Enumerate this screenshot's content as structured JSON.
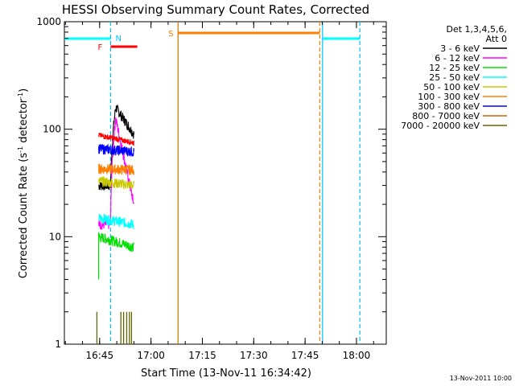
{
  "chart_data": {
    "type": "line",
    "title": "HESSI Observing Summary Count Rates, Corrected",
    "xlabel": "Start Time (13-Nov-11 16:34:42)",
    "ylabel": "Corrected Count Rate (s",
    "ylabel_sup1": "-1",
    "ylabel_mid": " detector",
    "ylabel_sup2": "-1",
    "ylabel_end": ")",
    "y_scale": "log",
    "ylim": [
      1,
      1000
    ],
    "xlim_minutes": [
      0,
      94
    ],
    "x_ticks": [
      {
        "label": "16:45",
        "t": 10.3
      },
      {
        "label": "17:00",
        "t": 25.3
      },
      {
        "label": "17:15",
        "t": 40.3
      },
      {
        "label": "17:30",
        "t": 55.3
      },
      {
        "label": "17:45",
        "t": 70.3
      },
      {
        "label": "18:00",
        "t": 85.3
      }
    ],
    "y_ticks": [
      {
        "label": "1",
        "v": 1
      },
      {
        "label": "10",
        "v": 10
      },
      {
        "label": "100",
        "v": 100
      },
      {
        "label": "1000",
        "v": 1000
      }
    ],
    "legend_header": [
      "Det 1,3,4,5,6,",
      "Att 0"
    ],
    "legend_position": "right",
    "series": [
      {
        "name": "3 - 6 keV",
        "color": "#000000",
        "start": 30,
        "peak": 160,
        "end": 90,
        "lo": 28
      },
      {
        "name": "6 - 12 keV",
        "color": "#ff00ff",
        "start": 13,
        "peak": 125,
        "end": 20,
        "lo": 13
      },
      {
        "name": "12 - 25 keV",
        "color": "#00e000",
        "start": 10,
        "peak": 11,
        "end": 8,
        "lo": 9
      },
      {
        "name": "25 - 50 keV",
        "color": "#00ffff",
        "start": 15,
        "peak": 16,
        "end": 13,
        "lo": 14
      },
      {
        "name": "50 - 100 keV",
        "color": "#c8c800",
        "start": 33,
        "peak": 34,
        "end": 30,
        "lo": 31
      },
      {
        "name": "100 - 300 keV",
        "color": "#ff8000",
        "start": 43,
        "peak": 43,
        "end": 42,
        "lo": 41
      },
      {
        "name": "300 - 800 keV",
        "color": "#0000ff",
        "start": 66,
        "peak": 66,
        "end": 62,
        "lo": 63
      },
      {
        "name": "800 - 7000 keV",
        "color": "#c86400",
        "start": null,
        "peak": null,
        "end": null,
        "lo": null
      },
      {
        "name": "7000 - 20000 keV",
        "color": "#646400",
        "start": 1,
        "peak": 2,
        "end": 1,
        "lo": 1
      }
    ],
    "red_series_level": 88,
    "data_interval_minutes": [
      10.0,
      20.3
    ],
    "flags": [
      {
        "label": "N",
        "color": "#00c0ff",
        "t": 13.5
      },
      {
        "label": "F",
        "color": "#ff0000",
        "t0": 13.5,
        "t1": 21.3
      },
      {
        "label": "S",
        "color": "#ff8000",
        "t0": 33.2,
        "t1": 74.6
      }
    ],
    "night_intervals": [
      {
        "t0": 0,
        "t1": 13.5
      },
      {
        "t0": 75.4,
        "t1": 86.3
      }
    ],
    "vertical_markers": [
      {
        "t": 13.5,
        "color": "#00c0ff",
        "style": "dashed"
      },
      {
        "t": 33.2,
        "color": "#c87800",
        "style": "solid"
      },
      {
        "t": 74.6,
        "color": "#ff8000",
        "style": "dashed"
      },
      {
        "t": 75.4,
        "color": "#00c0ff",
        "style": "solid"
      },
      {
        "t": 86.3,
        "color": "#00c0ff",
        "style": "dashed"
      }
    ],
    "colors": {
      "night": "#00ffff",
      "saa": "#ff8000",
      "flare": "#ff0000"
    }
  },
  "footer_date": "13-Nov-2011 10:00"
}
